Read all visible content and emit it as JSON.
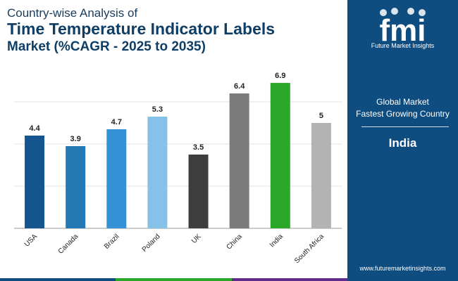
{
  "title": {
    "line1": "Country-wise Analysis of",
    "line2": "Time Temperature Indicator Labels",
    "line3": "Market (%CAGR - 2025 to 2035)"
  },
  "chart_data": {
    "type": "bar",
    "title": "Country-wise Analysis of Time Temperature Indicator Labels Market (%CAGR - 2025 to 2035)",
    "categories": [
      "USA",
      "Canada",
      "Brazil",
      "Poland",
      "UK",
      "China",
      "India",
      "South Africa"
    ],
    "values": [
      4.4,
      3.9,
      4.7,
      5.3,
      3.5,
      6.4,
      6.9,
      5
    ],
    "value_labels": [
      "4.4",
      "3.9",
      "4.7",
      "5.3",
      "3.5",
      "6.4",
      "6.9",
      "5"
    ],
    "colors": [
      "#15558f",
      "#2478b4",
      "#3591d6",
      "#86c1e8",
      "#3d3d3d",
      "#7b7b7b",
      "#2aa82a",
      "#b3b3b3"
    ],
    "ylim": [
      0,
      7.5
    ],
    "grid": true,
    "xlabel": "",
    "ylabel": ""
  },
  "panel": {
    "logo_text": "fmi",
    "logo_sub": "Future Market Insights",
    "label_line1": "Global Market",
    "label_line2": "Fastest Growing Country",
    "value": "India",
    "url": "www.futuremarketinsights.com"
  },
  "colors": {
    "panel_bg": "#0f4d80",
    "title": "#0e3e66",
    "bottom_bar": [
      "#0f4d80",
      "#2aa82a",
      "#5e2d8c"
    ]
  }
}
